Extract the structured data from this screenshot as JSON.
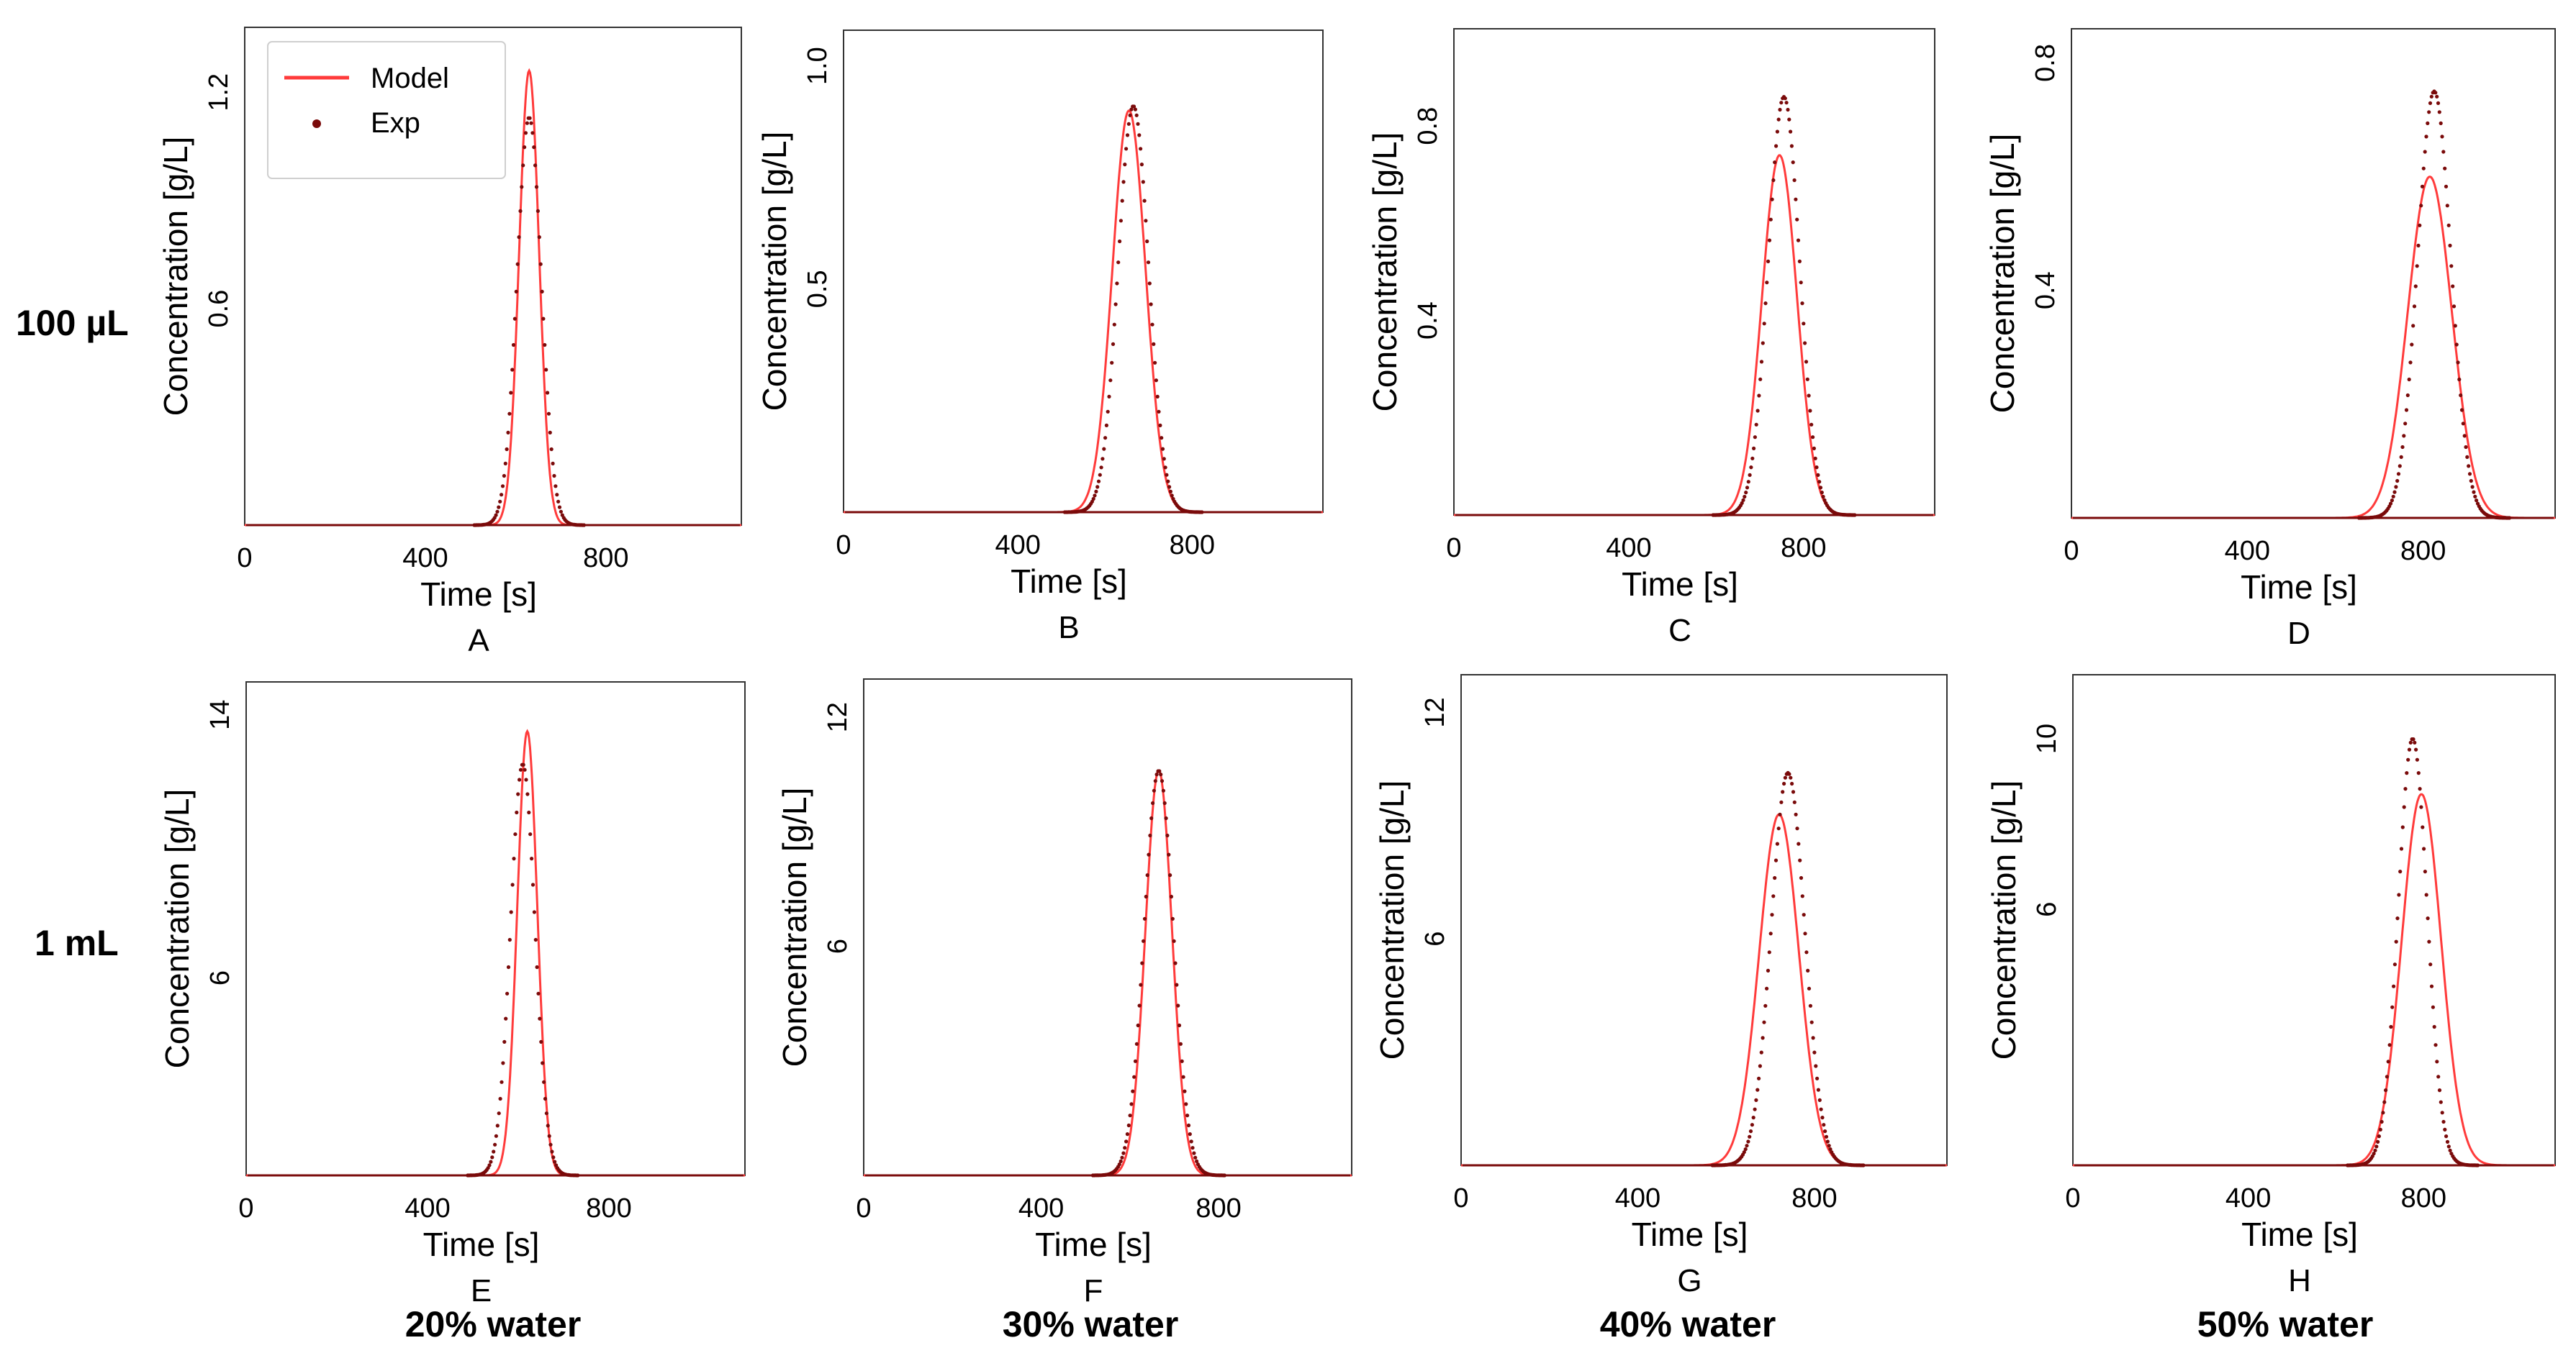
{
  "figure": {
    "row_labels": [
      "100 µL",
      "1 mL"
    ],
    "column_labels": [
      "20% water",
      "30% water",
      "40% water",
      "50% water"
    ],
    "legend": {
      "model": "Model",
      "exp": "Exp"
    },
    "colors": {
      "model": "#ff3b3b",
      "exp": "#7a0a0a",
      "frame": "#333333"
    }
  },
  "chart_data": [
    {
      "type": "line",
      "panel": "A",
      "xlabel": "Time [s]",
      "ylabel": "Concentration [g/L]",
      "xlim": [
        0,
        1100
      ],
      "ylim": [
        0,
        1.38
      ],
      "xticks": [
        0,
        400,
        800
      ],
      "yticks": [
        0.6,
        1.2
      ],
      "ytick_labels": [
        "0.6",
        "1.2"
      ],
      "series": [
        {
          "name": "Model",
          "peak_x": 630,
          "peak_y": 1.26,
          "sigma": 22
        },
        {
          "name": "Exp",
          "peak_x": 630,
          "peak_y": 1.13,
          "sigma": 27
        }
      ]
    },
    {
      "type": "line",
      "panel": "B",
      "xlabel": "Time [s]",
      "ylabel": "Concentration [g/L]",
      "xlim": [
        0,
        1100
      ],
      "ylim": [
        0,
        1.08
      ],
      "xticks": [
        0,
        400,
        800
      ],
      "yticks": [
        0.5,
        1.0
      ],
      "ytick_labels": [
        "0.5",
        "1.0"
      ],
      "series": [
        {
          "name": "Model",
          "peak_x": 655,
          "peak_y": 0.9,
          "sigma": 38
        },
        {
          "name": "Exp",
          "peak_x": 665,
          "peak_y": 0.91,
          "sigma": 35
        }
      ]
    },
    {
      "type": "line",
      "panel": "C",
      "xlabel": "Time [s]",
      "ylabel": "Concentration [g/L]",
      "xlim": [
        0,
        1100
      ],
      "ylim": [
        0,
        1.0
      ],
      "xticks": [
        0,
        400,
        800
      ],
      "yticks": [
        0.4,
        0.8
      ],
      "ytick_labels": [
        "0.4",
        "0.8"
      ],
      "series": [
        {
          "name": "Model",
          "peak_x": 745,
          "peak_y": 0.74,
          "sigma": 40
        },
        {
          "name": "Exp",
          "peak_x": 755,
          "peak_y": 0.86,
          "sigma": 36
        }
      ]
    },
    {
      "type": "line",
      "panel": "D",
      "xlabel": "Time [s]",
      "ylabel": "Concentration [g/L]",
      "xlim": [
        0,
        1100
      ],
      "ylim": [
        0,
        0.86
      ],
      "xticks": [
        0,
        400,
        800
      ],
      "yticks": [
        0.4,
        0.8
      ],
      "ytick_labels": [
        "0.4",
        "0.8"
      ],
      "series": [
        {
          "name": "Model",
          "peak_x": 815,
          "peak_y": 0.6,
          "sigma": 50
        },
        {
          "name": "Exp",
          "peak_x": 825,
          "peak_y": 0.75,
          "sigma": 38
        }
      ]
    },
    {
      "type": "line",
      "panel": "E",
      "xlabel": "Time [s]",
      "ylabel": "Concentration [g/L]",
      "xlim": [
        0,
        1100
      ],
      "ylim": [
        0,
        15
      ],
      "xticks": [
        0,
        400,
        800
      ],
      "yticks": [
        6,
        14
      ],
      "ytick_labels": [
        "6",
        "14"
      ],
      "series": [
        {
          "name": "Model",
          "peak_x": 620,
          "peak_y": 13.5,
          "sigma": 22
        },
        {
          "name": "Exp",
          "peak_x": 610,
          "peak_y": 12.5,
          "sigma": 27
        }
      ]
    },
    {
      "type": "line",
      "panel": "F",
      "xlabel": "Time [s]",
      "ylabel": "Concentration [g/L]",
      "xlim": [
        0,
        1100
      ],
      "ylim": [
        0,
        13
      ],
      "xticks": [
        0,
        400,
        800
      ],
      "yticks": [
        6,
        12
      ],
      "ytick_labels": [
        "6",
        "12"
      ],
      "series": [
        {
          "name": "Model",
          "peak_x": 665,
          "peak_y": 10.6,
          "sigma": 30
        },
        {
          "name": "Exp",
          "peak_x": 665,
          "peak_y": 10.6,
          "sigma": 33
        }
      ]
    },
    {
      "type": "line",
      "panel": "G",
      "xlabel": "Time [s]",
      "ylabel": "Concentration [g/L]",
      "xlim": [
        0,
        1100
      ],
      "ylim": [
        0,
        13
      ],
      "xticks": [
        0,
        400,
        800
      ],
      "yticks": [
        6,
        12
      ],
      "ytick_labels": [
        "6",
        "12"
      ],
      "series": [
        {
          "name": "Model",
          "peak_x": 720,
          "peak_y": 9.3,
          "sigma": 45
        },
        {
          "name": "Exp",
          "peak_x": 740,
          "peak_y": 10.4,
          "sigma": 38
        }
      ]
    },
    {
      "type": "line",
      "panel": "H",
      "xlabel": "Time [s]",
      "ylabel": "Concentration [g/L]",
      "xlim": [
        0,
        1100
      ],
      "ylim": [
        0,
        11.5
      ],
      "xticks": [
        0,
        400,
        800
      ],
      "yticks": [
        6,
        10
      ],
      "ytick_labels": [
        "6",
        "10"
      ],
      "series": [
        {
          "name": "Model",
          "peak_x": 795,
          "peak_y": 8.7,
          "sigma": 45
        },
        {
          "name": "Exp",
          "peak_x": 775,
          "peak_y": 10.0,
          "sigma": 33
        }
      ]
    }
  ]
}
